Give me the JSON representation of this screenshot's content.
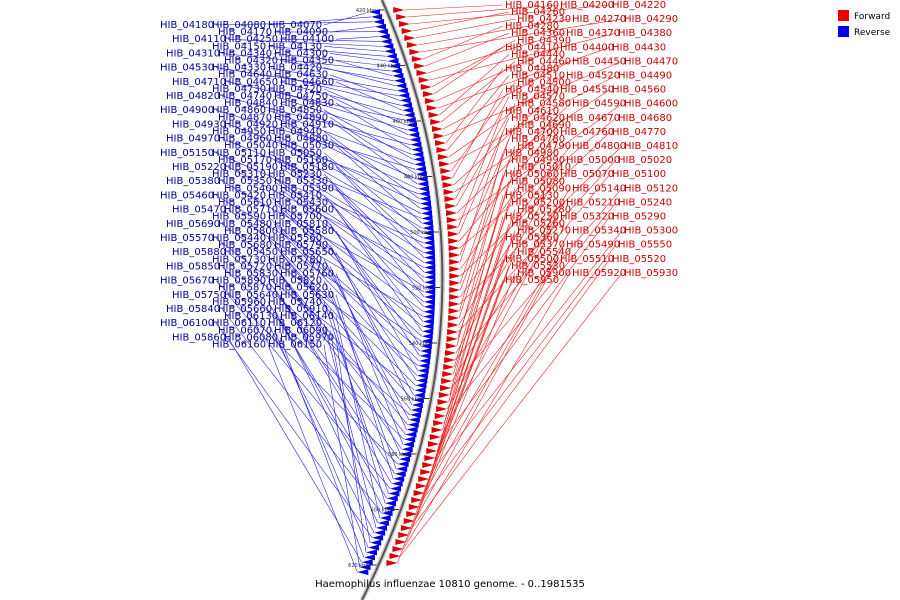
{
  "caption": "Haemophilus influenzae 10810 genome. - 0..1981535",
  "colors": {
    "forward": "#dd0000",
    "reverse": "#0000ee",
    "forward_line": "#ee2222",
    "reverse_line": "#2222ee",
    "forward_text": "#cc0000",
    "reverse_text": "#000099"
  },
  "legend": [
    {
      "label": "Forward",
      "color": "#ee0000"
    },
    {
      "label": "Reverse",
      "color": "#0000ee"
    }
  ],
  "ticks": [
    "420 kbp",
    "440 kbp",
    "460 kbp",
    "480 kbp",
    "500 kbp",
    "520 kbp",
    "540 kbp",
    "560 kbp",
    "580 kbp",
    "600 kbp",
    "620 kbp"
  ],
  "forward_genes": [
    "HIB_04160",
    "HIB_04200",
    "HIB_04220",
    "HIB_04260",
    "HIB_04230",
    "HIB_04270",
    "HIB_04290",
    "HIB_04280",
    "HIB_04360",
    "HIB_04370",
    "HIB_04380",
    "HIB_04390",
    "HIB_04410",
    "HIB_04400",
    "HIB_04430",
    "HIB_04440",
    "HIB_04460",
    "HIB_04450",
    "HIB_04470",
    "HIB_04480",
    "HIB_04510",
    "HIB_04520",
    "HIB_04490",
    "HIB_04500",
    "HIB_04540",
    "HIB_04550",
    "HIB_04560",
    "HIB_04570",
    "HIB_04580",
    "HIB_04590",
    "HIB_04600",
    "HIB_04610",
    "HIB_04620",
    "HIB_04670",
    "HIB_04680",
    "HIB_04690",
    "HIB_04700",
    "HIB_04760",
    "HIB_04770",
    "HIB_04780",
    "HIB_04790",
    "HIB_04800",
    "HIB_04810",
    "HIB_04980",
    "HIB_04990",
    "HIB_05000",
    "HIB_05020",
    "HIB_05010",
    "HIB_05060",
    "HIB_05070",
    "HIB_05100",
    "HIB_05080",
    "HIB_05090",
    "HIB_05140",
    "HIB_05120",
    "HIB_05130",
    "HIB_05200",
    "HIB_05210",
    "HIB_05240",
    "HIB_05280",
    "HIB_05250",
    "HIB_05320",
    "HIB_05290",
    "HIB_05260",
    "HIB_05270",
    "HIB_05340",
    "HIB_05300",
    "HIB_05360",
    "HIB_05370",
    "HIB_05490",
    "HIB_05550",
    "HIB_05540",
    "HIB_05500",
    "HIB_05510",
    "HIB_05520",
    "HIB_05530",
    "HIB_05900",
    "HIB_05920",
    "HIB_05930",
    "HIB_05950"
  ],
  "reverse_genes": [
    "HIB_04070",
    "HIB_04080",
    "HIB_04180",
    "HIB_04090",
    "HIB_04170",
    "HIB_04100",
    "HIB_04250",
    "HIB_04110",
    "HIB_04130",
    "HIB_04150",
    "HIB_04300",
    "HIB_04340",
    "HIB_04310",
    "HIB_04350",
    "HIB_04320",
    "HIB_04420",
    "HIB_04330",
    "HIB_04530",
    "HIB_04630",
    "HIB_04640",
    "HIB_04660",
    "HIB_04650",
    "HIB_04710",
    "HIB_04720",
    "HIB_04730",
    "HIB_04750",
    "HIB_04740",
    "HIB_04820",
    "HIB_04830",
    "HIB_04840",
    "HIB_04850",
    "HIB_04860",
    "HIB_04900",
    "HIB_04890",
    "HIB_04870",
    "HIB_04910",
    "HIB_04920",
    "HIB_04930",
    "HIB_04940",
    "HIB_04950",
    "HIB_04880",
    "HIB_04960",
    "HIB_04970",
    "HIB_05030",
    "HIB_05040",
    "HIB_05050",
    "HIB_05110",
    "HIB_05150",
    "HIB_05160",
    "HIB_05170",
    "HIB_05180",
    "HIB_05190",
    "HIB_05220",
    "HIB_05230",
    "HIB_05310",
    "HIB_05330",
    "HIB_05350",
    "HIB_05380",
    "HIB_05390",
    "HIB_05400",
    "HIB_05410",
    "HIB_05420",
    "HIB_05460",
    "HIB_05430",
    "HIB_05610",
    "HIB_05600",
    "HIB_05710",
    "HIB_05470",
    "HIB_05700",
    "HIB_05590",
    "HIB_05810",
    "HIB_05480",
    "HIB_05690",
    "HIB_05580",
    "HIB_05800",
    "HIB_05560",
    "HIB_05440",
    "HIB_05570",
    "HIB_05790",
    "HIB_05680",
    "HIB_05650",
    "HIB_05450",
    "HIB_05880",
    "HIB_05780",
    "HIB_05730",
    "HIB_05770",
    "HIB_05720",
    "HIB_05850",
    "HIB_05760",
    "HIB_05830",
    "HIB_05820",
    "HIB_05890",
    "HIB_05670",
    "HIB_05620",
    "HIB_05870",
    "HIB_05630",
    "HIB_05640",
    "HIB_05750",
    "HIB_05740",
    "HIB_05960",
    "HIB_05910",
    "HIB_05660",
    "HIB_05840",
    "HIB_06140",
    "HIB_06130",
    "HIB_06120",
    "HIB_06110",
    "HIB_06100",
    "HIB_06090",
    "HIB_06070",
    "HIB_05970",
    "HIB_06080",
    "HIB_05860",
    "HIB_06150",
    "HIB_06160"
  ]
}
